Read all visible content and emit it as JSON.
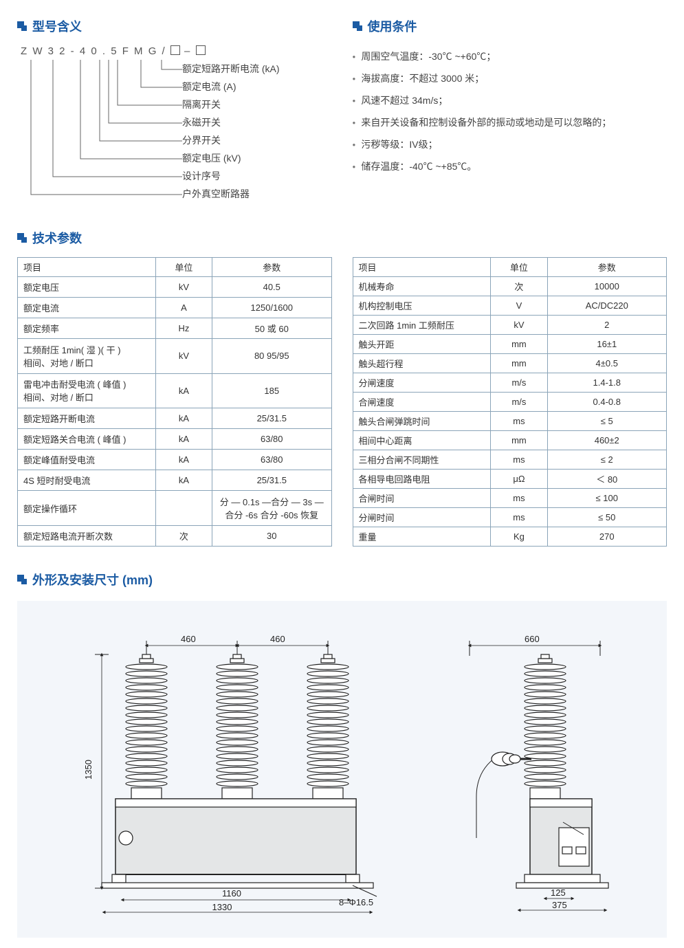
{
  "colors": {
    "brand_blue": "#1b5ba3",
    "table_border": "#8aa4b8",
    "text": "#333333",
    "muted": "#555555",
    "dims_bg": "#f3f6fa"
  },
  "sections": {
    "model_meaning": "型号含义",
    "usage_conditions": "使用条件",
    "tech_params": "技术参数",
    "dimensions": "外形及安装尺寸 (mm)"
  },
  "model_code_parts": [
    "Z W",
    "3 2",
    "-",
    "4 0 . 5",
    "F",
    "M",
    "G",
    "/",
    "□",
    "–",
    "□"
  ],
  "model_decode": [
    "额定短路开断电流 (kA)",
    "额定电流 (A)",
    "隔离开关",
    "永磁开关",
    "分界开关",
    "额定电压 (kV)",
    "设计序号",
    "户外真空断路器"
  ],
  "usage_conditions": [
    "周围空气温度：-30℃ ~+60℃；",
    "海拔高度：不超过 3000 米；",
    "风速不超过 34m/s；",
    "来自开关设备和控制设备外部的振动或地动是可以忽略的；",
    "污秽等级：IV级；",
    "储存温度：-40℃ ~+85℃。"
  ],
  "table_headers": [
    "项目",
    "单位",
    "参数"
  ],
  "table_left": [
    [
      "额定电压",
      "kV",
      "40.5"
    ],
    [
      "额定电流",
      "A",
      "1250/1600"
    ],
    [
      "额定频率",
      "Hz",
      "50 或 60"
    ],
    [
      "工频耐压 1min( 湿 )( 干 )\n相间、对地 / 断口",
      "kV",
      "80 95/95"
    ],
    [
      "雷电冲击耐受电流 ( 峰值 )\n相间、对地 / 断口",
      "kA",
      "185"
    ],
    [
      "额定短路开断电流",
      "kA",
      "25/31.5"
    ],
    [
      "额定短路关合电流 ( 峰值 )",
      "kA",
      "63/80"
    ],
    [
      "额定峰值耐受电流",
      "kA",
      "63/80"
    ],
    [
      "4S 短时耐受电流",
      "kA",
      "25/31.5"
    ],
    [
      "额定操作循环",
      "",
      "分 — 0.1s —合分 — 3s —合分 -6s 合分 -60s 恢复"
    ],
    [
      "额定短路电流开断次数",
      "次",
      "30"
    ]
  ],
  "table_right": [
    [
      "机械寿命",
      "次",
      "10000"
    ],
    [
      "机构控制电压",
      "V",
      "AC/DC220"
    ],
    [
      "二次回路 1min 工频耐压",
      "kV",
      "2"
    ],
    [
      "触头开距",
      "mm",
      "16±1"
    ],
    [
      "触头超行程",
      "mm",
      "4±0.5"
    ],
    [
      "分闸速度",
      "m/s",
      "1.4-1.8"
    ],
    [
      "合闸速度",
      "m/s",
      "0.4-0.8"
    ],
    [
      "触头合闸弹跳时间",
      "ms",
      "≤ 5"
    ],
    [
      "相间中心距离",
      "mm",
      "460±2"
    ],
    [
      "三相分合闸不同期性",
      "ms",
      "≤ 2"
    ],
    [
      "各相导电回路电阻",
      "μΩ",
      "＜ 80"
    ],
    [
      "合闸时间",
      "ms",
      "≤ 100"
    ],
    [
      "分闸时间",
      "ms",
      "≤ 50"
    ],
    [
      "重量",
      "Kg",
      "270"
    ]
  ],
  "dimensions": {
    "front": {
      "pole_spacing": "460",
      "base_width_inner": "1160",
      "base_width_outer": "1330",
      "height": "1350",
      "bolt": "8–Φ16.5"
    },
    "side": {
      "width": "660",
      "foot_inner": "125",
      "foot_outer": "375"
    }
  }
}
